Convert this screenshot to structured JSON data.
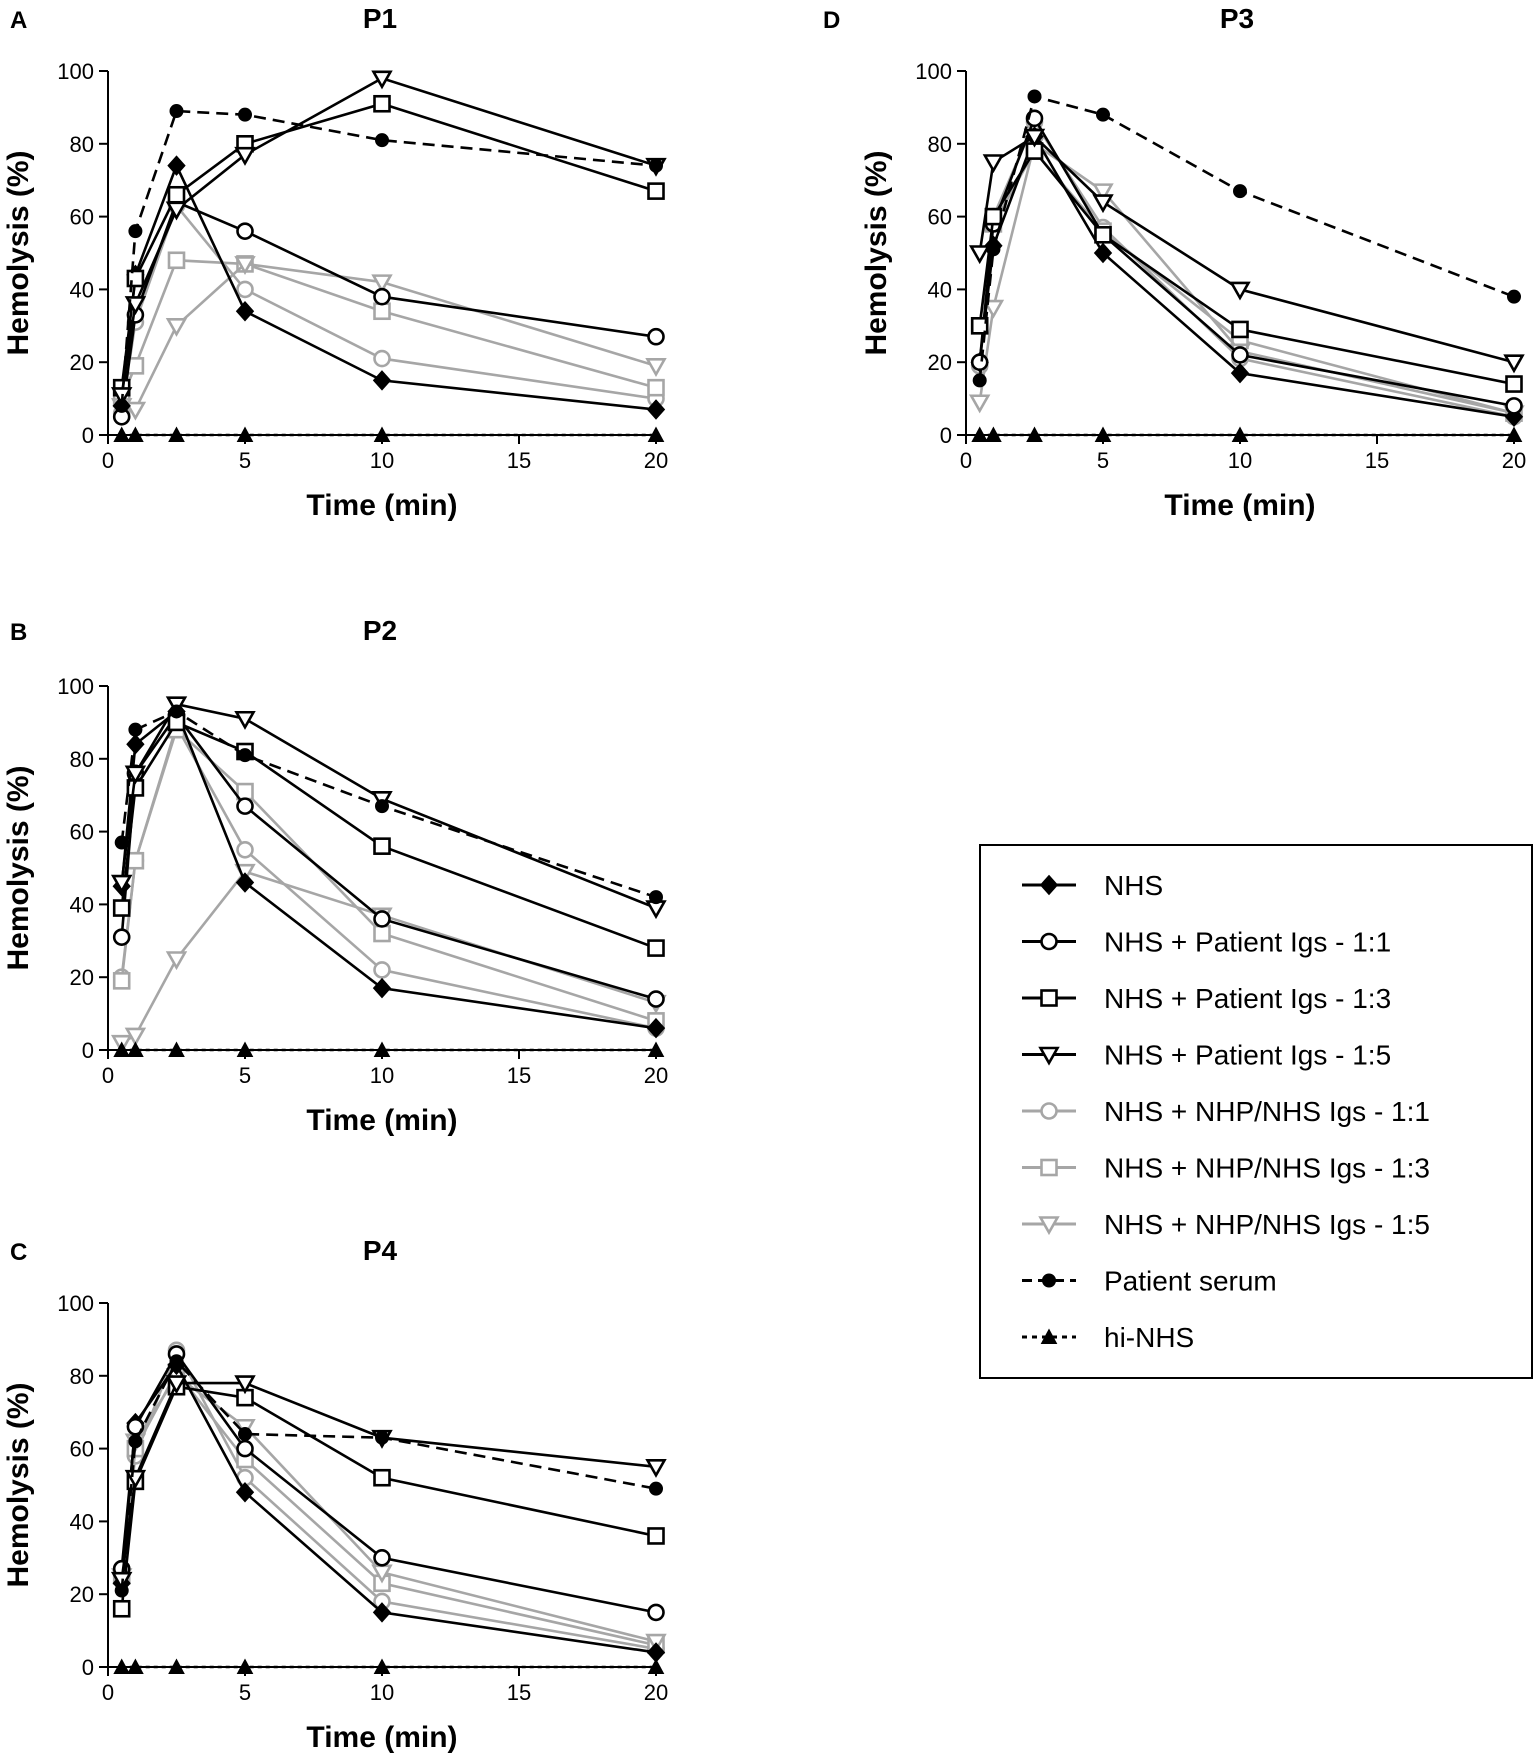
{
  "chart_data": [
    {
      "type": "line",
      "panel": "A",
      "title": "P1",
      "xlabel": "Time (min)",
      "ylabel": "Hemolysis (%)",
      "xlim": [
        0,
        20
      ],
      "ylim": [
        0,
        100
      ],
      "xticks": [
        0,
        5,
        10,
        15,
        20
      ],
      "yticks": [
        0,
        20,
        40,
        60,
        80,
        100
      ],
      "x": [
        0.5,
        1,
        2.5,
        5,
        10,
        20
      ],
      "series": [
        {
          "name": "NHS",
          "values": [
            8,
            44,
            74,
            34,
            15,
            7
          ]
        },
        {
          "name": "NHS + Patient Igs - 1:1",
          "values": [
            5,
            33,
            64,
            56,
            38,
            27
          ]
        },
        {
          "name": "NHS + Patient Igs - 1:3",
          "values": [
            13,
            43,
            66,
            80,
            91,
            67
          ]
        },
        {
          "name": "NHS + Patient Igs - 1:5",
          "values": [
            11,
            36,
            62,
            77,
            98,
            74
          ]
        },
        {
          "name": "NHS + NHP/NHS Igs - 1:1",
          "values": [
            6,
            31,
            63,
            40,
            21,
            10
          ]
        },
        {
          "name": "NHS + NHP/NHS Igs - 1:3",
          "values": [
            10,
            19,
            48,
            47,
            34,
            13
          ]
        },
        {
          "name": "NHS + NHP/NHS Igs - 1:5",
          "values": [
            8,
            7,
            30,
            47,
            42,
            19
          ]
        },
        {
          "name": "Patient serum",
          "values": [
            8,
            56,
            89,
            88,
            81,
            74
          ]
        },
        {
          "name": "hi-NHS",
          "values": [
            0,
            0,
            0,
            0,
            0,
            0
          ]
        }
      ]
    },
    {
      "type": "line",
      "panel": "B",
      "title": "P2",
      "xlabel": "Time (min)",
      "ylabel": "Hemolysis (%)",
      "xlim": [
        0,
        20
      ],
      "ylim": [
        0,
        100
      ],
      "xticks": [
        0,
        5,
        10,
        15,
        20
      ],
      "yticks": [
        0,
        20,
        40,
        60,
        80,
        100
      ],
      "x": [
        0.5,
        1,
        2.5,
        5,
        10,
        20
      ],
      "series": [
        {
          "name": "NHS",
          "values": [
            45,
            84,
            93,
            46,
            17,
            6
          ]
        },
        {
          "name": "NHS + Patient Igs - 1:1",
          "values": [
            31,
            76,
            92,
            67,
            36,
            14
          ]
        },
        {
          "name": "NHS + Patient Igs - 1:3",
          "values": [
            39,
            72,
            90,
            82,
            56,
            28
          ]
        },
        {
          "name": "NHS + Patient Igs - 1:5",
          "values": [
            46,
            76,
            95,
            91,
            69,
            39
          ]
        },
        {
          "name": "NHS + NHP/NHS Igs - 1:1",
          "values": [
            20,
            52,
            89,
            55,
            22,
            6
          ]
        },
        {
          "name": "NHS + NHP/NHS Igs - 1:3",
          "values": [
            19,
            52,
            88,
            71,
            32,
            8
          ]
        },
        {
          "name": "NHS + NHP/NHS Igs - 1:5",
          "values": [
            2,
            4,
            25,
            49,
            37,
            13
          ]
        },
        {
          "name": "Patient serum",
          "values": [
            57,
            88,
            93,
            81,
            67,
            42
          ]
        },
        {
          "name": "hi-NHS",
          "values": [
            0,
            0,
            0,
            0,
            0,
            0
          ]
        }
      ]
    },
    {
      "type": "line",
      "panel": "C",
      "title": "P4",
      "xlabel": "Time (min)",
      "ylabel": "Hemolysis (%)",
      "xlim": [
        0,
        20
      ],
      "ylim": [
        0,
        100
      ],
      "xticks": [
        0,
        5,
        10,
        15,
        20
      ],
      "yticks": [
        0,
        20,
        40,
        60,
        80,
        100
      ],
      "x": [
        0.5,
        1,
        2.5,
        5,
        10,
        20
      ],
      "series": [
        {
          "name": "NHS",
          "values": [
            23,
            67,
            83,
            48,
            15,
            4
          ]
        },
        {
          "name": "NHS + Patient Igs - 1:1",
          "values": [
            27,
            66,
            86,
            60,
            30,
            15
          ]
        },
        {
          "name": "NHS + Patient Igs - 1:3",
          "values": [
            16,
            51,
            77,
            74,
            52,
            36
          ]
        },
        {
          "name": "NHS + Patient Igs - 1:5",
          "values": [
            24,
            52,
            78,
            78,
            63,
            55
          ]
        },
        {
          "name": "NHS + NHP/NHS Igs - 1:1",
          "values": [
            27,
            58,
            87,
            52,
            18,
            5
          ]
        },
        {
          "name": "NHS + NHP/NHS Igs - 1:3",
          "values": [
            25,
            60,
            81,
            57,
            23,
            6
          ]
        },
        {
          "name": "NHS + NHP/NHS Igs - 1:5",
          "values": [
            25,
            62,
            80,
            66,
            26,
            7
          ]
        },
        {
          "name": "Patient serum",
          "values": [
            21,
            62,
            84,
            64,
            63,
            49
          ]
        },
        {
          "name": "hi-NHS",
          "values": [
            0,
            0,
            0,
            0,
            0,
            0
          ]
        }
      ]
    },
    {
      "type": "line",
      "panel": "D",
      "title": "P3",
      "xlabel": "Time (min)",
      "ylabel": "Hemolysis (%)",
      "xlim": [
        0,
        20
      ],
      "ylim": [
        0,
        100
      ],
      "xticks": [
        0,
        5,
        10,
        15,
        20
      ],
      "yticks": [
        0,
        20,
        40,
        60,
        80,
        100
      ],
      "x": [
        0.5,
        1,
        2.5,
        5,
        10,
        20
      ],
      "series": [
        {
          "name": "NHS",
          "values": [
            20,
            52,
            82,
            50,
            17,
            5
          ]
        },
        {
          "name": "NHS + Patient Igs - 1:1",
          "values": [
            20,
            58,
            87,
            55,
            22,
            8
          ]
        },
        {
          "name": "NHS + Patient Igs - 1:3",
          "values": [
            30,
            60,
            78,
            55,
            29,
            14
          ]
        },
        {
          "name": "NHS + Patient Igs - 1:5",
          "values": [
            50,
            75,
            82,
            64,
            40,
            20
          ]
        },
        {
          "name": "NHS + NHP/NHS Igs - 1:1",
          "values": [
            19,
            60,
            86,
            57,
            21,
            5
          ]
        },
        {
          "name": "NHS + NHP/NHS Igs - 1:3",
          "values": [
            30,
            58,
            78,
            56,
            26,
            6
          ]
        },
        {
          "name": "NHS + NHP/NHS Igs - 1:5",
          "values": [
            9,
            35,
            80,
            67,
            23,
            6
          ]
        },
        {
          "name": "Patient serum",
          "values": [
            15,
            51,
            93,
            88,
            67,
            38
          ]
        },
        {
          "name": "hi-NHS",
          "values": [
            0,
            0,
            0,
            0,
            0,
            0
          ]
        }
      ]
    }
  ],
  "legend": {
    "placement": "right-middle",
    "items": [
      {
        "label": "NHS",
        "marker": "filled-diamond",
        "color": "#000000",
        "dash": "solid"
      },
      {
        "label": "NHS + Patient Igs - 1:1",
        "marker": "open-circle",
        "color": "#000000",
        "dash": "solid"
      },
      {
        "label": "NHS + Patient Igs - 1:3",
        "marker": "open-square",
        "color": "#000000",
        "dash": "solid"
      },
      {
        "label": "NHS + Patient Igs - 1:5",
        "marker": "open-triangle-down",
        "color": "#000000",
        "dash": "solid"
      },
      {
        "label": "NHS + NHP/NHS Igs - 1:1",
        "marker": "open-circle",
        "color": "#a6a6a6",
        "dash": "solid"
      },
      {
        "label": "NHS + NHP/NHS Igs - 1:3",
        "marker": "open-square",
        "color": "#a6a6a6",
        "dash": "solid"
      },
      {
        "label": "NHS + NHP/NHS Igs - 1:5",
        "marker": "open-triangle-down",
        "color": "#a6a6a6",
        "dash": "solid"
      },
      {
        "label": "Patient serum",
        "marker": "filled-circle",
        "color": "#000000",
        "dash": "dashed"
      },
      {
        "label": "hi-NHS",
        "marker": "filled-triangle-up",
        "color": "#000000",
        "dash": "dotted"
      }
    ]
  }
}
